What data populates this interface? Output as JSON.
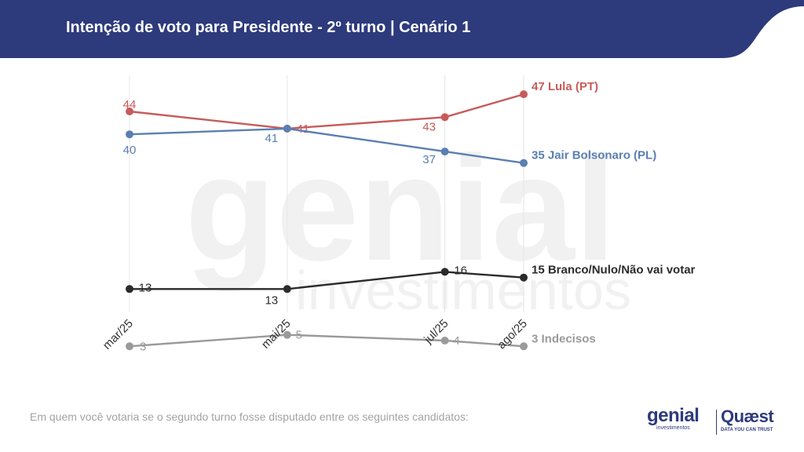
{
  "header": {
    "title": "Intenção de voto para Presidente - 2º turno | Cenário 1",
    "background_color": "#2d3a7c"
  },
  "chart_data": {
    "type": "line",
    "categories": [
      "mar/25",
      "mai/25",
      "jul/25",
      "ago/25"
    ],
    "x_positions_months": [
      3,
      5,
      7,
      8
    ],
    "grid": "vertical lines at each category",
    "series": [
      {
        "name": "Lula (PT)",
        "color": "#c75b5b",
        "values": [
          44,
          41,
          43,
          47
        ],
        "end_label": "47 Lula (PT)",
        "point_labels": [
          "44",
          "41",
          "43"
        ]
      },
      {
        "name": "Jair Bolsonaro (PL)",
        "color": "#5b7fb1",
        "values": [
          40,
          41,
          37,
          35
        ],
        "end_label": "35 Jair Bolsonaro (PL)",
        "point_labels": [
          "40",
          "41",
          "37"
        ]
      },
      {
        "name": "Branco/Nulo/Não vai votar",
        "color": "#2b2b2b",
        "values": [
          13,
          13,
          16,
          15
        ],
        "end_label": "15 Branco/Nulo/Não vai votar",
        "point_labels": [
          "13",
          "13",
          "16"
        ]
      },
      {
        "name": "Indecisos",
        "color": "#9a9a9a",
        "values": [
          3,
          5,
          4,
          3
        ],
        "end_label": "3 Indecisos",
        "point_labels": [
          "3",
          "5",
          "4"
        ]
      }
    ]
  },
  "footnote": "Em quem você votaria se o segundo turno fosse disputado entre os seguintes candidatos:",
  "logos": {
    "genial_main": "genial",
    "genial_sub": "investimentos",
    "quaest_main": "Quæst",
    "quaest_sub": "DATA YOU CAN TRUST"
  }
}
